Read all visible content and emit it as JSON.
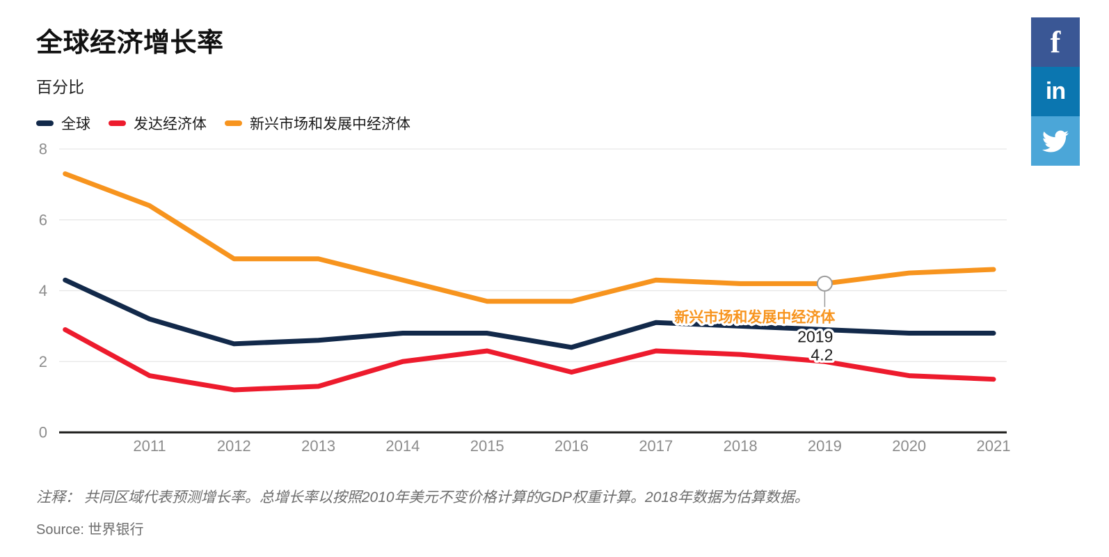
{
  "header": {
    "title": "全球经济增长率",
    "subtitle": "百分比"
  },
  "share_buttons": [
    {
      "name": "facebook",
      "color": "#3a5795"
    },
    {
      "name": "linkedin",
      "color": "#0b76b0"
    },
    {
      "name": "twitter",
      "color": "#4ba6d8"
    }
  ],
  "tooltip": {
    "series_label": "新兴市场和发展中经济体",
    "year": "2019",
    "value": "4.2",
    "label_color": "#f7941e",
    "text_color": "#1a1a1a",
    "marker_color": "#9b9b9b"
  },
  "footnote": {
    "prefix": "注释：",
    "text": " 共同区域代表预测增长率。总增长率以按照2010年美元不变价格计算的GDP权重计算。2018年数据为估算数据。"
  },
  "source": {
    "label": "Source:",
    "name": " 世界银行"
  },
  "chart_data": {
    "type": "line",
    "title": "全球经济增长率",
    "ylabel": "百分比",
    "x": [
      2010,
      2011,
      2012,
      2013,
      2014,
      2015,
      2016,
      2017,
      2018,
      2019,
      2020,
      2021
    ],
    "x_tick_labels": [
      "2011",
      "2012",
      "2013",
      "2014",
      "2015",
      "2016",
      "2017",
      "2018",
      "2019",
      "2020",
      "2021"
    ],
    "ylim": [
      0,
      8
    ],
    "yticks": [
      0,
      2,
      4,
      6,
      8
    ],
    "grid": "horizontal",
    "legend_position": "top-left",
    "gridline_color": "#e6e6e6",
    "axis_color": "#1d1d1b",
    "tick_label_color": "#8c8c8c",
    "series": [
      {
        "name": "全球",
        "color": "#12294a",
        "values": [
          4.3,
          3.2,
          2.5,
          2.6,
          2.8,
          2.8,
          2.4,
          3.1,
          3.0,
          2.9,
          2.8,
          2.8
        ]
      },
      {
        "name": "发达经济体",
        "color": "#ed1b2d",
        "values": [
          2.9,
          1.6,
          1.2,
          1.3,
          2.0,
          2.3,
          1.7,
          2.3,
          2.2,
          2.0,
          1.6,
          1.5
        ]
      },
      {
        "name": "新兴市场和发展中经济体",
        "color": "#f7941e",
        "values": [
          7.3,
          6.4,
          4.9,
          4.9,
          4.3,
          3.7,
          3.7,
          4.3,
          4.2,
          4.2,
          4.5,
          4.6
        ]
      }
    ],
    "annotation": {
      "series": "新兴市场和发展中经济体",
      "year": 2019,
      "value": 4.2
    }
  }
}
